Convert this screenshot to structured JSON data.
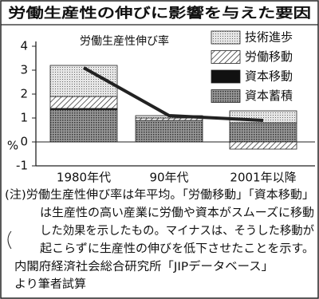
{
  "chart_data": {
    "type": "stacked_bar_line",
    "title": "労働生産性の伸びに影響を与えた要因",
    "y_label": "%",
    "categories": [
      "1980年代",
      "90年代",
      "2001年以降"
    ],
    "series": [
      {
        "name": "技術進歩",
        "color": "#d8d8d8",
        "pattern": "dots-light",
        "values": [
          1.3,
          0.1,
          0.5
        ]
      },
      {
        "name": "労働移動",
        "color": "#ffffff",
        "pattern": "hatch",
        "values": [
          0.5,
          0.1,
          -0.3
        ]
      },
      {
        "name": "資本移動",
        "color": "#111111",
        "pattern": "solid",
        "values": [
          0.05,
          0,
          0
        ]
      },
      {
        "name": "資本蓄積",
        "color": "#8a8a8a",
        "pattern": "dots-dark",
        "values": [
          1.35,
          0.9,
          0.8
        ]
      }
    ],
    "line": {
      "name": "労働生産性伸び率",
      "color": "#222222",
      "values": [
        3.1,
        1.1,
        0.9
      ]
    },
    "ylim": [
      -1,
      4
    ],
    "yticks": [
      -1,
      0,
      1,
      2,
      3,
      4
    ],
    "note_lines": [
      "(注)労働生産性伸び率は年平均。「労働移動」「資本移動」",
      "は生産性の高い産業に労働や資本がスムーズに移動",
      "した効果を示したもの。マイナスは、そうした移動が",
      "起こらずに生産性の伸びを低下させたことを示す。"
    ],
    "source_lines": [
      "内閣府経済社会総合研究所「JIPデータベース」",
      "より筆者試算"
    ]
  }
}
